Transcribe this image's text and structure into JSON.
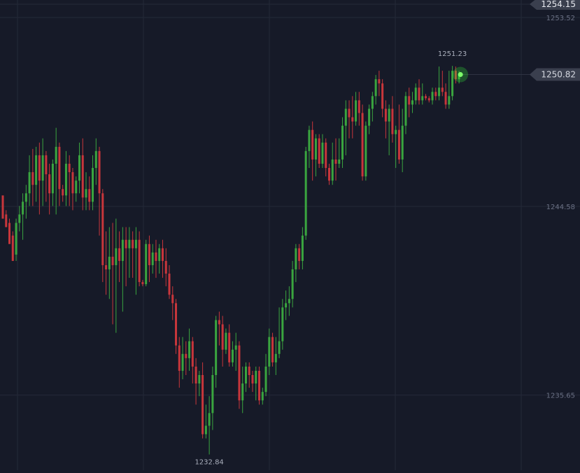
{
  "chart_data": {
    "type": "candlestick",
    "price_axis_ticks": [
      "1253.52",
      "1244.58",
      "1235.65"
    ],
    "tick_values": [
      1253.52,
      1244.58,
      1235.65
    ],
    "top_marker_label": "1254.15",
    "top_marker_value": 1254.15,
    "current_price_label": "1250.82",
    "current_price_value": 1250.82,
    "high_label": "1251.23",
    "high_value": 1251.23,
    "low_label": "1232.84",
    "low_value": 1232.84,
    "colors": {
      "background": "#161a28",
      "up": "#3aa53f",
      "down": "#c8363b",
      "grid": "#242938",
      "axis_text": "#6b7185",
      "marker_bg": "#3a3f4e",
      "marker_text": "#e6e8ee",
      "live_glow": "#39ff39"
    },
    "candles": [
      [
        1245.1,
        1244.0,
        1245.0,
        1244.2
      ],
      [
        1244.2,
        1243.6,
        1244.4,
        1243.8
      ],
      [
        1243.8,
        1242.8,
        1244.0,
        1243.2
      ],
      [
        1243.2,
        1242.0,
        1243.4,
        1242.3
      ],
      [
        1242.3,
        1243.8,
        1244.0,
        1242.0
      ],
      [
        1243.8,
        1244.2,
        1244.6,
        1243.4
      ],
      [
        1244.2,
        1244.8,
        1245.2,
        1243.0
      ],
      [
        1244.8,
        1245.2,
        1245.6,
        1244.0
      ],
      [
        1245.2,
        1246.2,
        1247.0,
        1244.6
      ],
      [
        1246.2,
        1245.6,
        1247.3,
        1244.6
      ],
      [
        1245.6,
        1247.0,
        1247.4,
        1244.8
      ],
      [
        1247.0,
        1245.8,
        1247.6,
        1244.2
      ],
      [
        1245.8,
        1247.0,
        1247.8,
        1244.6
      ],
      [
        1247.0,
        1246.1,
        1247.2,
        1244.8
      ],
      [
        1246.1,
        1245.2,
        1246.6,
        1244.2
      ],
      [
        1245.2,
        1246.6,
        1246.8,
        1244.6
      ],
      [
        1246.6,
        1247.4,
        1248.3,
        1244.2
      ],
      [
        1247.4,
        1245.4,
        1247.6,
        1244.6
      ],
      [
        1245.4,
        1245.1,
        1245.6,
        1244.8
      ],
      [
        1245.1,
        1246.6,
        1247.2,
        1244.6
      ],
      [
        1246.6,
        1246.2,
        1247.0,
        1244.6
      ],
      [
        1246.2,
        1245.2,
        1246.4,
        1244.4
      ],
      [
        1245.2,
        1245.8,
        1246.0,
        1244.8
      ],
      [
        1245.8,
        1247.0,
        1247.6,
        1245.2
      ],
      [
        1247.0,
        1245.0,
        1247.8,
        1244.4
      ],
      [
        1245.0,
        1245.4,
        1246.2,
        1244.4
      ],
      [
        1245.4,
        1244.8,
        1246.0,
        1244.4
      ],
      [
        1244.8,
        1246.4,
        1247.0,
        1244.4
      ],
      [
        1246.4,
        1247.2,
        1247.8,
        1245.6
      ],
      [
        1247.2,
        1245.2,
        1247.4,
        1243.2
      ],
      [
        1245.2,
        1241.8,
        1245.4,
        1241.0
      ],
      [
        1241.8,
        1241.6,
        1243.4,
        1240.4
      ],
      [
        1241.6,
        1242.2,
        1243.6,
        1240.2
      ],
      [
        1242.2,
        1241.8,
        1243.8,
        1239.0
      ],
      [
        1241.8,
        1242.6,
        1244.0,
        1238.6
      ],
      [
        1242.6,
        1242.0,
        1243.4,
        1241.0
      ],
      [
        1242.0,
        1243.0,
        1243.6,
        1239.6
      ],
      [
        1243.0,
        1242.6,
        1243.6,
        1240.8
      ],
      [
        1242.6,
        1243.0,
        1243.6,
        1241.2
      ],
      [
        1243.0,
        1242.6,
        1243.4,
        1241.2
      ],
      [
        1242.6,
        1243.0,
        1243.6,
        1240.4
      ],
      [
        1243.0,
        1241.0,
        1243.4,
        1240.8
      ],
      [
        1241.0,
        1240.9,
        1241.1,
        1240.8
      ],
      [
        1240.9,
        1242.8,
        1243.0,
        1240.8
      ],
      [
        1242.8,
        1241.8,
        1243.2,
        1241.0
      ],
      [
        1241.8,
        1242.4,
        1242.8,
        1241.4
      ],
      [
        1242.4,
        1242.0,
        1243.0,
        1241.2
      ],
      [
        1242.0,
        1242.6,
        1242.8,
        1241.4
      ],
      [
        1242.6,
        1242.0,
        1243.0,
        1241.2
      ],
      [
        1242.0,
        1241.4,
        1242.6,
        1240.8
      ],
      [
        1241.4,
        1240.4,
        1241.8,
        1240.2
      ],
      [
        1240.4,
        1240.0,
        1240.8,
        1239.2
      ],
      [
        1240.0,
        1238.0,
        1240.2,
        1237.6
      ],
      [
        1238.0,
        1236.8,
        1238.4,
        1236.0
      ],
      [
        1236.8,
        1237.6,
        1238.4,
        1236.4
      ],
      [
        1237.6,
        1237.4,
        1238.2,
        1236.6
      ],
      [
        1237.4,
        1238.2,
        1238.8,
        1236.8
      ],
      [
        1238.2,
        1237.0,
        1238.4,
        1236.2
      ],
      [
        1237.0,
        1236.2,
        1237.4,
        1235.2
      ],
      [
        1236.2,
        1236.6,
        1236.8,
        1235.6
      ],
      [
        1236.6,
        1233.8,
        1237.2,
        1233.6
      ],
      [
        1233.8,
        1234.2,
        1235.2,
        1233.6
      ],
      [
        1234.2,
        1234.8,
        1235.6,
        1232.84
      ],
      [
        1234.8,
        1236.6,
        1237.0,
        1234.0
      ],
      [
        1236.6,
        1239.2,
        1239.4,
        1236.0
      ],
      [
        1239.2,
        1239.0,
        1239.6,
        1238.0
      ],
      [
        1239.0,
        1237.8,
        1239.4,
        1237.0
      ],
      [
        1237.8,
        1238.6,
        1238.8,
        1237.6
      ],
      [
        1238.6,
        1237.2,
        1239.0,
        1237.0
      ],
      [
        1237.2,
        1237.8,
        1238.2,
        1237.0
      ],
      [
        1237.8,
        1238.0,
        1238.6,
        1236.8
      ],
      [
        1238.0,
        1235.4,
        1238.2,
        1235.0
      ],
      [
        1235.4,
        1236.2,
        1237.0,
        1234.8
      ],
      [
        1236.2,
        1237.0,
        1237.2,
        1235.8
      ],
      [
        1237.0,
        1236.6,
        1237.2,
        1236.0
      ],
      [
        1236.6,
        1236.2,
        1236.8,
        1235.8
      ],
      [
        1236.2,
        1236.8,
        1237.0,
        1235.4
      ],
      [
        1236.8,
        1235.4,
        1237.0,
        1235.2
      ],
      [
        1235.4,
        1235.8,
        1236.0,
        1235.2
      ],
      [
        1235.8,
        1237.0,
        1237.6,
        1235.6
      ],
      [
        1237.0,
        1238.4,
        1238.8,
        1236.6
      ],
      [
        1238.4,
        1237.2,
        1238.6,
        1237.0
      ],
      [
        1237.2,
        1237.6,
        1238.4,
        1236.6
      ],
      [
        1237.6,
        1238.2,
        1239.8,
        1237.4
      ],
      [
        1238.2,
        1239.8,
        1240.2,
        1237.8
      ],
      [
        1239.8,
        1240.0,
        1240.6,
        1239.2
      ],
      [
        1240.0,
        1240.2,
        1240.8,
        1239.4
      ],
      [
        1240.2,
        1241.6,
        1242.0,
        1239.8
      ],
      [
        1241.6,
        1242.6,
        1242.8,
        1241.0
      ],
      [
        1242.6,
        1242.0,
        1242.8,
        1241.6
      ],
      [
        1242.0,
        1243.2,
        1243.6,
        1241.6
      ],
      [
        1243.2,
        1247.2,
        1247.4,
        1243.0
      ],
      [
        1247.2,
        1248.2,
        1248.4,
        1246.4
      ],
      [
        1248.2,
        1246.8,
        1248.6,
        1245.8
      ],
      [
        1246.8,
        1247.8,
        1248.0,
        1246.0
      ],
      [
        1247.8,
        1246.6,
        1248.0,
        1246.4
      ],
      [
        1246.6,
        1247.6,
        1248.0,
        1246.4
      ],
      [
        1247.6,
        1246.4,
        1247.8,
        1246.0
      ],
      [
        1246.4,
        1245.8,
        1246.6,
        1245.6
      ],
      [
        1245.8,
        1246.8,
        1247.6,
        1245.6
      ],
      [
        1246.8,
        1246.6,
        1247.8,
        1245.8
      ],
      [
        1246.6,
        1246.8,
        1247.8,
        1246.4
      ],
      [
        1246.8,
        1248.4,
        1248.8,
        1246.4
      ],
      [
        1248.4,
        1249.2,
        1249.6,
        1247.0
      ],
      [
        1249.2,
        1248.8,
        1249.6,
        1247.8
      ],
      [
        1248.8,
        1248.6,
        1249.8,
        1247.8
      ],
      [
        1248.6,
        1249.6,
        1250.0,
        1248.4
      ],
      [
        1249.6,
        1249.0,
        1250.0,
        1248.4
      ],
      [
        1249.0,
        1246.0,
        1249.4,
        1245.8
      ],
      [
        1246.0,
        1248.4,
        1248.6,
        1245.8
      ],
      [
        1248.4,
        1249.2,
        1249.4,
        1248.0
      ],
      [
        1249.2,
        1249.8,
        1250.0,
        1248.6
      ],
      [
        1249.8,
        1250.6,
        1250.8,
        1249.4
      ],
      [
        1250.6,
        1250.4,
        1251.0,
        1249.8
      ],
      [
        1250.4,
        1249.2,
        1250.6,
        1248.8
      ],
      [
        1249.2,
        1248.6,
        1249.6,
        1247.8
      ],
      [
        1248.6,
        1249.2,
        1249.4,
        1247.0
      ],
      [
        1249.2,
        1248.0,
        1249.8,
        1247.6
      ],
      [
        1248.0,
        1248.2,
        1248.4,
        1246.4
      ],
      [
        1248.2,
        1246.8,
        1249.4,
        1246.6
      ],
      [
        1246.8,
        1248.4,
        1249.2,
        1246.2
      ],
      [
        1248.4,
        1249.8,
        1250.0,
        1248.0
      ],
      [
        1249.8,
        1249.4,
        1250.2,
        1248.8
      ],
      [
        1249.4,
        1249.6,
        1250.0,
        1249.0
      ],
      [
        1249.6,
        1250.2,
        1250.4,
        1249.4
      ],
      [
        1250.2,
        1249.6,
        1250.6,
        1249.4
      ],
      [
        1249.6,
        1249.8,
        1250.4,
        1249.4
      ],
      [
        1249.8,
        1249.7,
        1249.9,
        1249.6
      ],
      [
        1249.7,
        1249.6,
        1249.8,
        1249.5
      ],
      [
        1249.6,
        1250.0,
        1250.2,
        1249.4
      ],
      [
        1250.0,
        1249.8,
        1250.2,
        1249.6
      ],
      [
        1249.8,
        1250.2,
        1251.2,
        1249.6
      ],
      [
        1250.2,
        1250.0,
        1251.0,
        1249.8
      ],
      [
        1250.0,
        1249.4,
        1250.4,
        1249.2
      ],
      [
        1249.4,
        1249.8,
        1251.0,
        1249.2
      ],
      [
        1249.8,
        1251.0,
        1251.23,
        1249.6
      ],
      [
        1251.0,
        1250.6,
        1251.2,
        1250.4
      ],
      [
        1250.6,
        1250.82,
        1251.0,
        1250.4
      ]
    ]
  }
}
